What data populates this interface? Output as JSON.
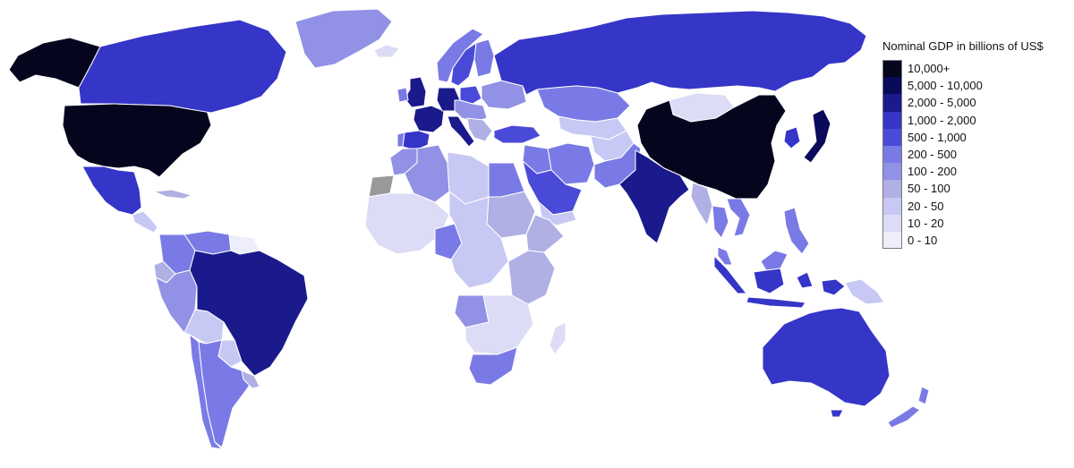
{
  "legend": {
    "title": "Nominal GDP in billions of US$",
    "items": [
      {
        "label": "10,000+",
        "color": "#05051e"
      },
      {
        "label": "5,000 - 10,000",
        "color": "#0a0a5a"
      },
      {
        "label": "2,000 - 5,000",
        "color": "#1a1a8c"
      },
      {
        "label": "1,000 - 2,000",
        "color": "#3535c8"
      },
      {
        "label": "500 - 1,000",
        "color": "#4a4ad8"
      },
      {
        "label": "200 - 500",
        "color": "#7a7ae6"
      },
      {
        "label": "100 - 200",
        "color": "#9191e6"
      },
      {
        "label": "50 - 100",
        "color": "#b0b0e4"
      },
      {
        "label": "20 - 50",
        "color": "#c8c8f4"
      },
      {
        "label": "10 - 20",
        "color": "#dcdcf6"
      },
      {
        "label": "0 - 10",
        "color": "#eeeefb"
      }
    ]
  },
  "no_data_color": "#999999",
  "regions": [
    {
      "name": "Alaska",
      "tier": "10,000+"
    },
    {
      "name": "United States",
      "tier": "10,000+"
    },
    {
      "name": "Canada",
      "tier": "1,000 - 2,000"
    },
    {
      "name": "Greenland",
      "tier": "100 - 200"
    },
    {
      "name": "Mexico",
      "tier": "1,000 - 2,000"
    },
    {
      "name": "Central America",
      "tier": "20 - 50"
    },
    {
      "name": "Cuba",
      "tier": "50 - 100"
    },
    {
      "name": "Venezuela",
      "tier": "200 - 500"
    },
    {
      "name": "Colombia",
      "tier": "200 - 500"
    },
    {
      "name": "Guianas",
      "tier": "0 - 10"
    },
    {
      "name": "Ecuador",
      "tier": "50 - 100"
    },
    {
      "name": "Peru",
      "tier": "100 - 200"
    },
    {
      "name": "Brazil",
      "tier": "2,000 - 5,000"
    },
    {
      "name": "Bolivia",
      "tier": "20 - 50"
    },
    {
      "name": "Paraguay",
      "tier": "20 - 50"
    },
    {
      "name": "Chile",
      "tier": "200 - 500"
    },
    {
      "name": "Argentina",
      "tier": "200 - 500"
    },
    {
      "name": "Uruguay",
      "tier": "50 - 100"
    },
    {
      "name": "Iceland",
      "tier": "10 - 20"
    },
    {
      "name": "United Kingdom",
      "tier": "2,000 - 5,000"
    },
    {
      "name": "Ireland",
      "tier": "200 - 500"
    },
    {
      "name": "Norway",
      "tier": "200 - 500"
    },
    {
      "name": "Sweden",
      "tier": "500 - 1,000"
    },
    {
      "name": "Finland",
      "tier": "200 - 500"
    },
    {
      "name": "France",
      "tier": "2,000 - 5,000"
    },
    {
      "name": "Spain",
      "tier": "1,000 - 2,000"
    },
    {
      "name": "Portugal",
      "tier": "200 - 500"
    },
    {
      "name": "Germany",
      "tier": "2,000 - 5,000"
    },
    {
      "name": "Italy",
      "tier": "2,000 - 5,000"
    },
    {
      "name": "Poland",
      "tier": "500 - 1,000"
    },
    {
      "name": "Eastern Europe",
      "tier": "100 - 200"
    },
    {
      "name": "Balkans",
      "tier": "50 - 100"
    },
    {
      "name": "Ukraine",
      "tier": "100 - 200"
    },
    {
      "name": "Turkey",
      "tier": "500 - 1,000"
    },
    {
      "name": "Russia",
      "tier": "1,000 - 2,000"
    },
    {
      "name": "Kazakhstan",
      "tier": "200 - 500"
    },
    {
      "name": "Central Asia",
      "tier": "20 - 50"
    },
    {
      "name": "Mongolia",
      "tier": "10 - 20"
    },
    {
      "name": "China",
      "tier": "10,000+"
    },
    {
      "name": "Japan",
      "tier": "5,000 - 10,000"
    },
    {
      "name": "Korea",
      "tier": "1,000 - 2,000"
    },
    {
      "name": "Iran",
      "tier": "200 - 500"
    },
    {
      "name": "Iraq",
      "tier": "200 - 500"
    },
    {
      "name": "Saudi Arabia",
      "tier": "500 - 1,000"
    },
    {
      "name": "Yemen",
      "tier": "20 - 50"
    },
    {
      "name": "Afghanistan",
      "tier": "20 - 50"
    },
    {
      "name": "Pakistan",
      "tier": "200 - 500"
    },
    {
      "name": "India",
      "tier": "2,000 - 5,000"
    },
    {
      "name": "Myanmar",
      "tier": "50 - 100"
    },
    {
      "name": "Thailand",
      "tier": "200 - 500"
    },
    {
      "name": "Vietnam",
      "tier": "200 - 500"
    },
    {
      "name": "Malaysia",
      "tier": "200 - 500"
    },
    {
      "name": "Indonesia",
      "tier": "1,000 - 2,000"
    },
    {
      "name": "Philippines",
      "tier": "200 - 500"
    },
    {
      "name": "Papua New Guinea",
      "tier": "20 - 50"
    },
    {
      "name": "Australia",
      "tier": "1,000 - 2,000"
    },
    {
      "name": "New Zealand",
      "tier": "200 - 500"
    },
    {
      "name": "Morocco",
      "tier": "100 - 200"
    },
    {
      "name": "Western Sahara",
      "tier": "no data"
    },
    {
      "name": "Algeria",
      "tier": "100 - 200"
    },
    {
      "name": "Libya",
      "tier": "20 - 50"
    },
    {
      "name": "Egypt",
      "tier": "200 - 500"
    },
    {
      "name": "Sudan",
      "tier": "50 - 100"
    },
    {
      "name": "West Africa",
      "tier": "10 - 20"
    },
    {
      "name": "Nigeria",
      "tier": "200 - 500"
    },
    {
      "name": "Central Africa",
      "tier": "20 - 50"
    },
    {
      "name": "Ethiopia",
      "tier": "50 - 100"
    },
    {
      "name": "East Africa",
      "tier": "50 - 100"
    },
    {
      "name": "Angola",
      "tier": "100 - 200"
    },
    {
      "name": "Southern Africa",
      "tier": "10 - 20"
    },
    {
      "name": "South Africa",
      "tier": "200 - 500"
    },
    {
      "name": "Madagascar",
      "tier": "10 - 20"
    }
  ]
}
